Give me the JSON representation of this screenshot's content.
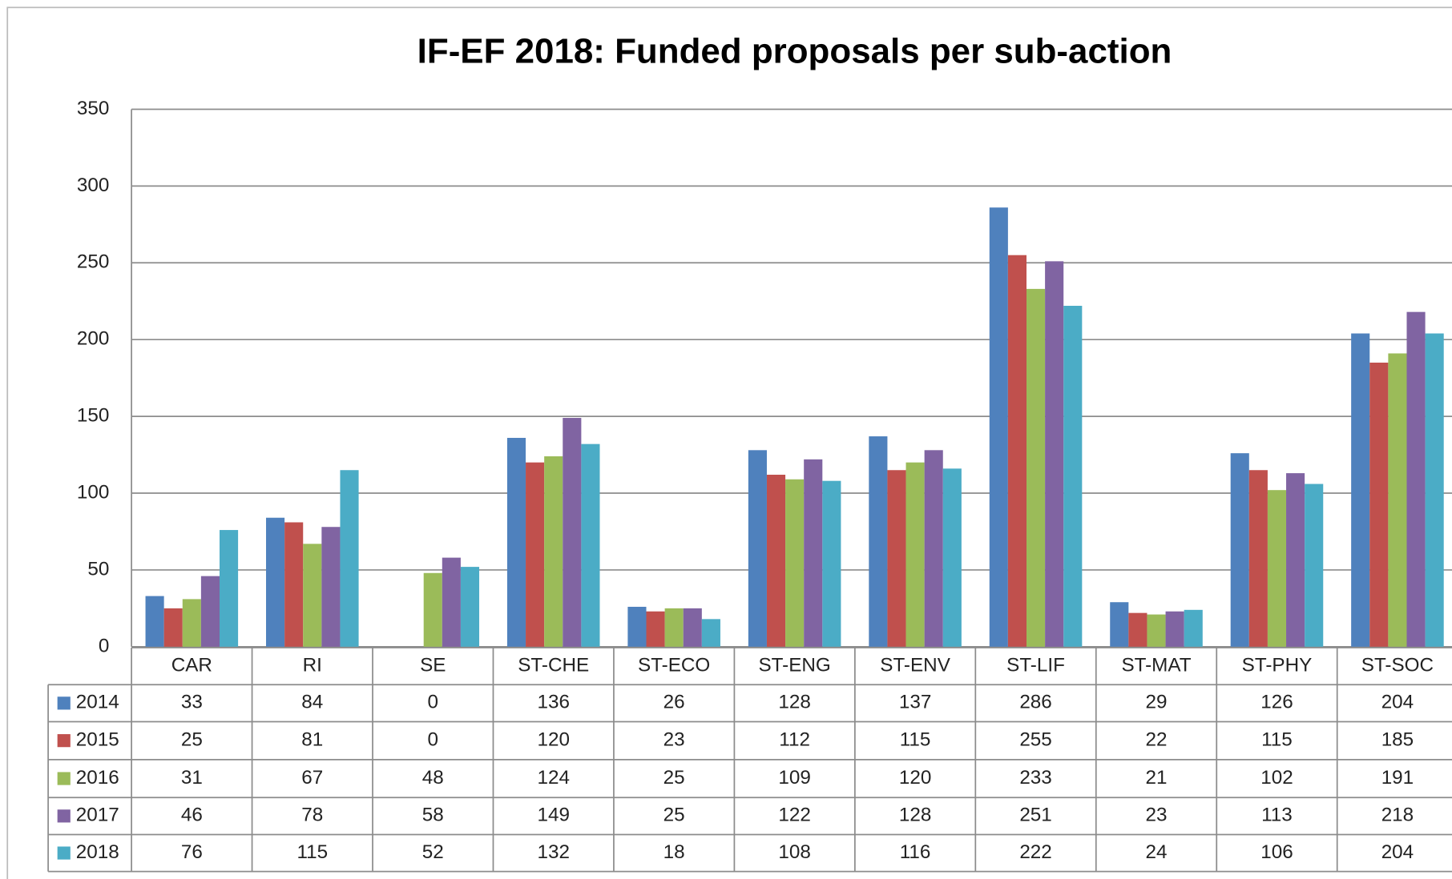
{
  "chart_data": {
    "type": "bar",
    "title": "IF-EF 2018: Funded proposals per sub-action",
    "categories": [
      "CAR",
      "RI",
      "SE",
      "ST-CHE",
      "ST-ECO",
      "ST-ENG",
      "ST-ENV",
      "ST-LIF",
      "ST-MAT",
      "ST-PHY",
      "ST-SOC"
    ],
    "series": [
      {
        "name": "2014",
        "color": "#4f81bd",
        "values": [
          33,
          84,
          0,
          136,
          26,
          128,
          137,
          286,
          29,
          126,
          204
        ]
      },
      {
        "name": "2015",
        "color": "#c0504d",
        "values": [
          25,
          81,
          0,
          120,
          23,
          112,
          115,
          255,
          22,
          115,
          185
        ]
      },
      {
        "name": "2016",
        "color": "#9bbb59",
        "values": [
          31,
          67,
          48,
          124,
          25,
          109,
          120,
          233,
          21,
          102,
          191
        ]
      },
      {
        "name": "2017",
        "color": "#8064a2",
        "values": [
          46,
          78,
          58,
          149,
          25,
          122,
          128,
          251,
          23,
          113,
          218
        ]
      },
      {
        "name": "2018",
        "color": "#4bacc6",
        "values": [
          76,
          115,
          52,
          132,
          18,
          108,
          116,
          222,
          24,
          106,
          204
        ]
      }
    ],
    "ylim": [
      0,
      350
    ],
    "yticks": [
      0,
      50,
      100,
      150,
      200,
      250,
      300,
      350
    ],
    "grid": true
  }
}
